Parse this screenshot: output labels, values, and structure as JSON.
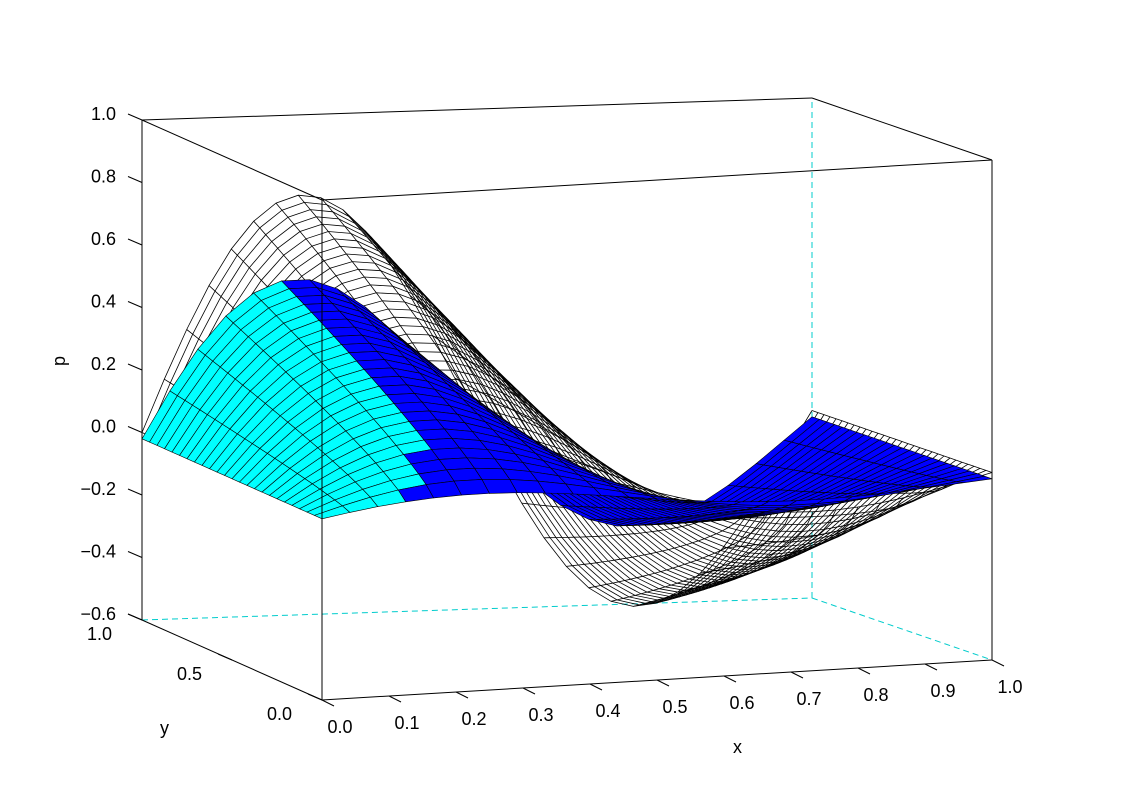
{
  "chart_data": {
    "type": "surface3d",
    "title": "",
    "xlabel": "x",
    "ylabel": "y",
    "zlabel": "p",
    "xlim": [
      0.0,
      1.0
    ],
    "ylim": [
      0.0,
      1.0
    ],
    "zlim": [
      -0.6,
      1.0
    ],
    "x_ticks": [
      "0.0",
      "0.1",
      "0.2",
      "0.3",
      "0.4",
      "0.5",
      "0.6",
      "0.7",
      "0.8",
      "0.9",
      "1.0"
    ],
    "y_ticks": [
      "0.0",
      "0.5",
      "1.0"
    ],
    "z_ticks": [
      "−0.6",
      "−0.4",
      "−0.2",
      "0.0",
      "0.2",
      "0.4",
      "0.6",
      "0.8",
      "1.0"
    ],
    "series": [
      {
        "style": "wireframe",
        "color": "#000000",
        "description_values": "p(x,y) = 0.82*sin(pi*x)^1.5 ... (one full sine period in x, peak +0.82 near x=0.28, trough -0.58 near x=0.7, amplitude rises with y)",
        "peak_value": 0.82,
        "trough_value": -0.58
      },
      {
        "style": "shaded-surface",
        "top_color": "#0000ff",
        "bottom_color": "#00ffff",
        "grid_color": "#000000",
        "peak_value": 0.6,
        "trough_value": -0.3
      }
    ]
  }
}
